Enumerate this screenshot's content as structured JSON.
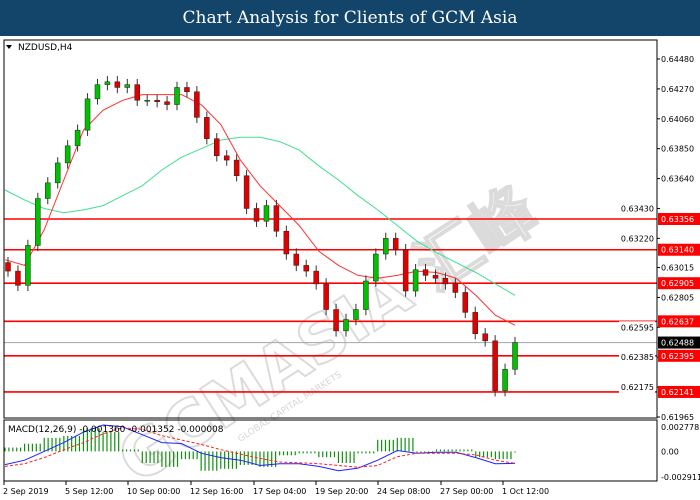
{
  "header": {
    "title": "Chart Analysis for Clients of GCM Asia"
  },
  "watermark": {
    "text": "GCMASIA 汇峰",
    "subtext": "GLOBAL CAPITAL MARKETS"
  },
  "chart_data": {
    "type": "candlestick",
    "symbol_label": "NZDUSD,H4",
    "price_ylim": [
      0.61965,
      0.6448
    ],
    "price_ticks": [
      "0.64480",
      "0.64270",
      "0.64060",
      "0.63850",
      "0.63640",
      "0.63430",
      "0.63220",
      "0.63015",
      "0.62805",
      "0.62595",
      "0.62385",
      "0.62175",
      "0.61965"
    ],
    "x_tick_labels": [
      "2 Sep 2019",
      "5 Sep 12:00",
      "10 Sep 00:00",
      "12 Sep 16:00",
      "17 Sep 04:00",
      "19 Sep 20:00",
      "24 Sep 08:00",
      "27 Sep 00:00",
      "1 Oct 12:00"
    ],
    "closes": [
      0.6299,
      0.6289,
      0.6317,
      0.635,
      0.6361,
      0.6375,
      0.6387,
      0.6398,
      0.642,
      0.643,
      0.6432,
      0.6428,
      0.643,
      0.6419,
      0.6419,
      0.6418,
      0.6416,
      0.6428,
      0.6425,
      0.6407,
      0.6392,
      0.638,
      0.6377,
      0.6366,
      0.6343,
      0.6334,
      0.6345,
      0.6327,
      0.6311,
      0.6303,
      0.6299,
      0.629,
      0.6272,
      0.6257,
      0.6265,
      0.6272,
      0.6292,
      0.6311,
      0.6322,
      0.6314,
      0.6285,
      0.63,
      0.6296,
      0.6294,
      0.629,
      0.6284,
      0.627,
      0.6255,
      0.625,
      0.6215,
      0.623,
      0.62488
    ],
    "ma_fast": [
      0.6307,
      0.6303,
      0.6328,
      0.6363,
      0.6398,
      0.6412,
      0.6419,
      0.6423,
      0.6423,
      0.6423,
      0.6416,
      0.6402,
      0.6377,
      0.6359,
      0.6345,
      0.6331,
      0.6313,
      0.6303,
      0.6296,
      0.6294,
      0.6296,
      0.6299,
      0.6298,
      0.6294,
      0.6282,
      0.6268,
      0.6261
    ],
    "ma_slow": [
      0.6356,
      0.6349,
      0.6343,
      0.634,
      0.6342,
      0.6345,
      0.6352,
      0.6359,
      0.637,
      0.6379,
      0.6385,
      0.6391,
      0.6393,
      0.6393,
      0.639,
      0.6384,
      0.6373,
      0.6363,
      0.6352,
      0.6342,
      0.6331,
      0.632,
      0.6312,
      0.6305,
      0.6298,
      0.629,
      0.6282
    ],
    "levels": [
      {
        "label": "0.63356",
        "value": 0.63356
      },
      {
        "label": "0.63140",
        "value": 0.6314
      },
      {
        "label": "0.62905",
        "value": 0.62905
      },
      {
        "label": "0.62637",
        "value": 0.62637
      },
      {
        "label": "0.62395",
        "value": 0.62395
      },
      {
        "label": "0.62141",
        "value": 0.62141
      }
    ],
    "current_price": {
      "label": "0.62488",
      "value": 0.62488
    },
    "macd": {
      "label": "MACD(12,26,9) -0.001360 -0.001352 -0.000008",
      "ylim": [
        -0.002911,
        0.002778
      ],
      "ticks": [
        "0.002778",
        "0.00",
        "-0.002911"
      ],
      "main": [
        -0.0015,
        -0.001,
        0.0,
        0.001,
        0.0022,
        0.003,
        0.0028,
        0.0019,
        0.001,
        0.0009,
        -0.0002,
        -0.0007,
        -0.001,
        -0.0016,
        -0.0014,
        -0.0014,
        -0.0017,
        -0.0022,
        -0.0019,
        -0.001,
        0.0001,
        -0.0002,
        -0.0001,
        -0.0001,
        -0.0007,
        -0.0014,
        -0.00136
      ],
      "signal": [
        -0.0017,
        -0.0014,
        -0.0007,
        0.0002,
        0.001,
        0.002,
        0.0027,
        0.0025,
        0.0018,
        0.0013,
        0.0008,
        0.0002,
        -0.0003,
        -0.0008,
        -0.0012,
        -0.0013,
        -0.0014,
        -0.0016,
        -0.0018,
        -0.0016,
        -0.0006,
        -0.0002,
        -0.0002,
        -0.0002,
        -0.0004,
        -0.001,
        -0.001352
      ]
    },
    "colors": {
      "bull": "#00c000",
      "bear": "#e00000",
      "ma_fast": "#ff3030",
      "ma_slow": "#40e090",
      "level": "#ff0000",
      "macd_main": "#2020ff",
      "macd_signal": "#ff2020",
      "histogram": "#109010"
    }
  }
}
